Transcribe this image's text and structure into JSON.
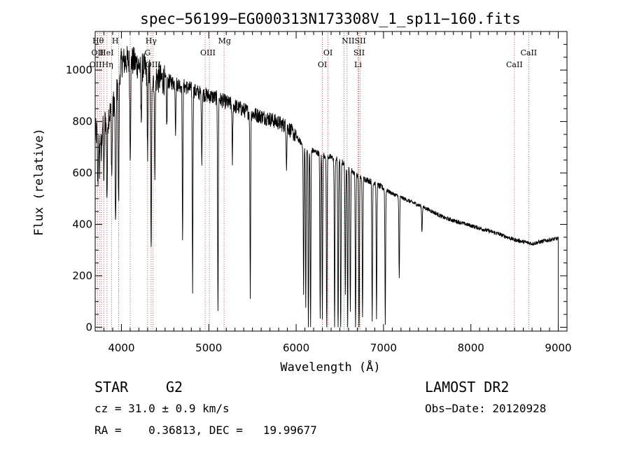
{
  "chart_data": {
    "type": "line",
    "title": "spec−56199−EG000313N173308V_1_sp11−160.fits",
    "xlabel": "Wavelength (Å)",
    "ylabel": "Flux (relative)",
    "xlim": [
      3700,
      9100
    ],
    "ylim": [
      -15,
      1150
    ],
    "xticks": [
      4000,
      5000,
      6000,
      7000,
      8000,
      9000
    ],
    "yticks": [
      0,
      200,
      400,
      600,
      800,
      1000
    ],
    "grid": false,
    "continuum": {
      "x": [
        3700,
        3800,
        3900,
        4000,
        4100,
        4200,
        4300,
        4400,
        4500,
        4700,
        4900,
        5100,
        5300,
        5500,
        5700,
        5900,
        6100,
        6300,
        6500,
        6700,
        6900,
        7100,
        7300,
        7500,
        7700,
        7900,
        8100,
        8300,
        8500,
        8700,
        8900,
        9000
      ],
      "y": [
        750,
        800,
        850,
        1030,
        1040,
        1020,
        1000,
        970,
        960,
        940,
        910,
        890,
        860,
        830,
        810,
        780,
        700,
        670,
        650,
        590,
        560,
        520,
        490,
        460,
        425,
        405,
        385,
        365,
        340,
        325,
        340,
        345
      ]
    },
    "absorption_lines": [
      {
        "x": 3730,
        "depth": 200
      },
      {
        "x": 3750,
        "depth": 150
      },
      {
        "x": 3770,
        "depth": 130
      },
      {
        "x": 3800,
        "depth": 220
      },
      {
        "x": 3835,
        "depth": 300
      },
      {
        "x": 3890,
        "depth": 250
      },
      {
        "x": 3934,
        "depth": 550
      },
      {
        "x": 3968,
        "depth": 500
      },
      {
        "x": 4101,
        "depth": 350
      },
      {
        "x": 4226,
        "depth": 200
      },
      {
        "x": 4300,
        "depth": 330
      },
      {
        "x": 4340,
        "depth": 700
      },
      {
        "x": 4383,
        "depth": 350
      },
      {
        "x": 4520,
        "depth": 180
      },
      {
        "x": 4620,
        "depth": 180
      },
      {
        "x": 4700,
        "depth": 620
      },
      {
        "x": 4815,
        "depth": 770
      },
      {
        "x": 4920,
        "depth": 250
      },
      {
        "x": 5105,
        "depth": 850
      },
      {
        "x": 5270,
        "depth": 220
      },
      {
        "x": 5475,
        "depth": 700
      },
      {
        "x": 5890,
        "depth": 150
      },
      {
        "x": 6085,
        "depth": 580
      },
      {
        "x": 6110,
        "depth": 620
      },
      {
        "x": 6140,
        "depth": 700
      },
      {
        "x": 6165,
        "depth": 690
      },
      {
        "x": 6275,
        "depth": 650
      },
      {
        "x": 6300,
        "depth": 630
      },
      {
        "x": 6350,
        "depth": 680
      },
      {
        "x": 6440,
        "depth": 670
      },
      {
        "x": 6480,
        "depth": 720
      },
      {
        "x": 6510,
        "depth": 700
      },
      {
        "x": 6563,
        "depth": 520
      },
      {
        "x": 6590,
        "depth": 630
      },
      {
        "x": 6620,
        "depth": 560
      },
      {
        "x": 6680,
        "depth": 600
      },
      {
        "x": 6720,
        "depth": 640
      },
      {
        "x": 6760,
        "depth": 550
      },
      {
        "x": 6870,
        "depth": 540
      },
      {
        "x": 6920,
        "depth": 520
      },
      {
        "x": 7020,
        "depth": 520
      },
      {
        "x": 7180,
        "depth": 320
      },
      {
        "x": 7440,
        "depth": 100
      }
    ],
    "line_markers_top": [
      {
        "label": "Hθ",
        "x": 3798,
        "row": 1,
        "anchor": "end"
      },
      {
        "label": "H",
        "x": 3968,
        "row": 1,
        "anchor": "end"
      },
      {
        "label": "Hγ",
        "x": 4340,
        "row": 1,
        "anchor": "middle"
      },
      {
        "label": "Mg",
        "x": 5180,
        "row": 1,
        "anchor": "middle"
      },
      {
        "label": "NIISII",
        "x": 6660,
        "row": 1,
        "anchor": "middle"
      },
      {
        "label": "OII",
        "x": 3727,
        "row": 2,
        "anchor": "middle"
      },
      {
        "label": "HeI",
        "x": 3830,
        "row": 2,
        "anchor": "middle"
      },
      {
        "label": "G",
        "x": 4300,
        "row": 2,
        "anchor": "middle"
      },
      {
        "label": "OIII",
        "x": 4990,
        "row": 2,
        "anchor": "middle"
      },
      {
        "label": "OI",
        "x": 6364,
        "row": 2,
        "anchor": "middle"
      },
      {
        "label": "SII",
        "x": 6720,
        "row": 2,
        "anchor": "middle"
      },
      {
        "label": "CaII",
        "x": 8662,
        "row": 2,
        "anchor": "middle"
      },
      {
        "label": "OIIHη",
        "x": 3770,
        "row": 3,
        "anchor": "middle"
      },
      {
        "label": "OIII",
        "x": 4363,
        "row": 3,
        "anchor": "middle"
      },
      {
        "label": "OI",
        "x": 6300,
        "row": 3,
        "anchor": "middle"
      },
      {
        "label": "Li",
        "x": 6708,
        "row": 3,
        "anchor": "middle"
      },
      {
        "label": "CaII",
        "x": 8498,
        "row": 3,
        "anchor": "middle"
      }
    ],
    "line_marker_positions": [
      3727,
      3750,
      3770,
      3798,
      3835,
      3889,
      3968,
      4101,
      4300,
      4340,
      4363,
      4959,
      5007,
      5175,
      6300,
      6364,
      6548,
      6583,
      6708,
      6716,
      6731,
      8498,
      8662
    ],
    "colors": {
      "spectrum": "#000000",
      "marker_lines": "#b04040",
      "frame": "#000000"
    }
  },
  "info": {
    "class_type": "STAR",
    "subclass": "G2",
    "cz": "cz = 31.0 ± 0.9 km/s",
    "radec": "RA =    0.36813, DEC =   19.99677",
    "survey": "LAMOST DR2",
    "obs_date": "Obs−Date: 20120928"
  }
}
